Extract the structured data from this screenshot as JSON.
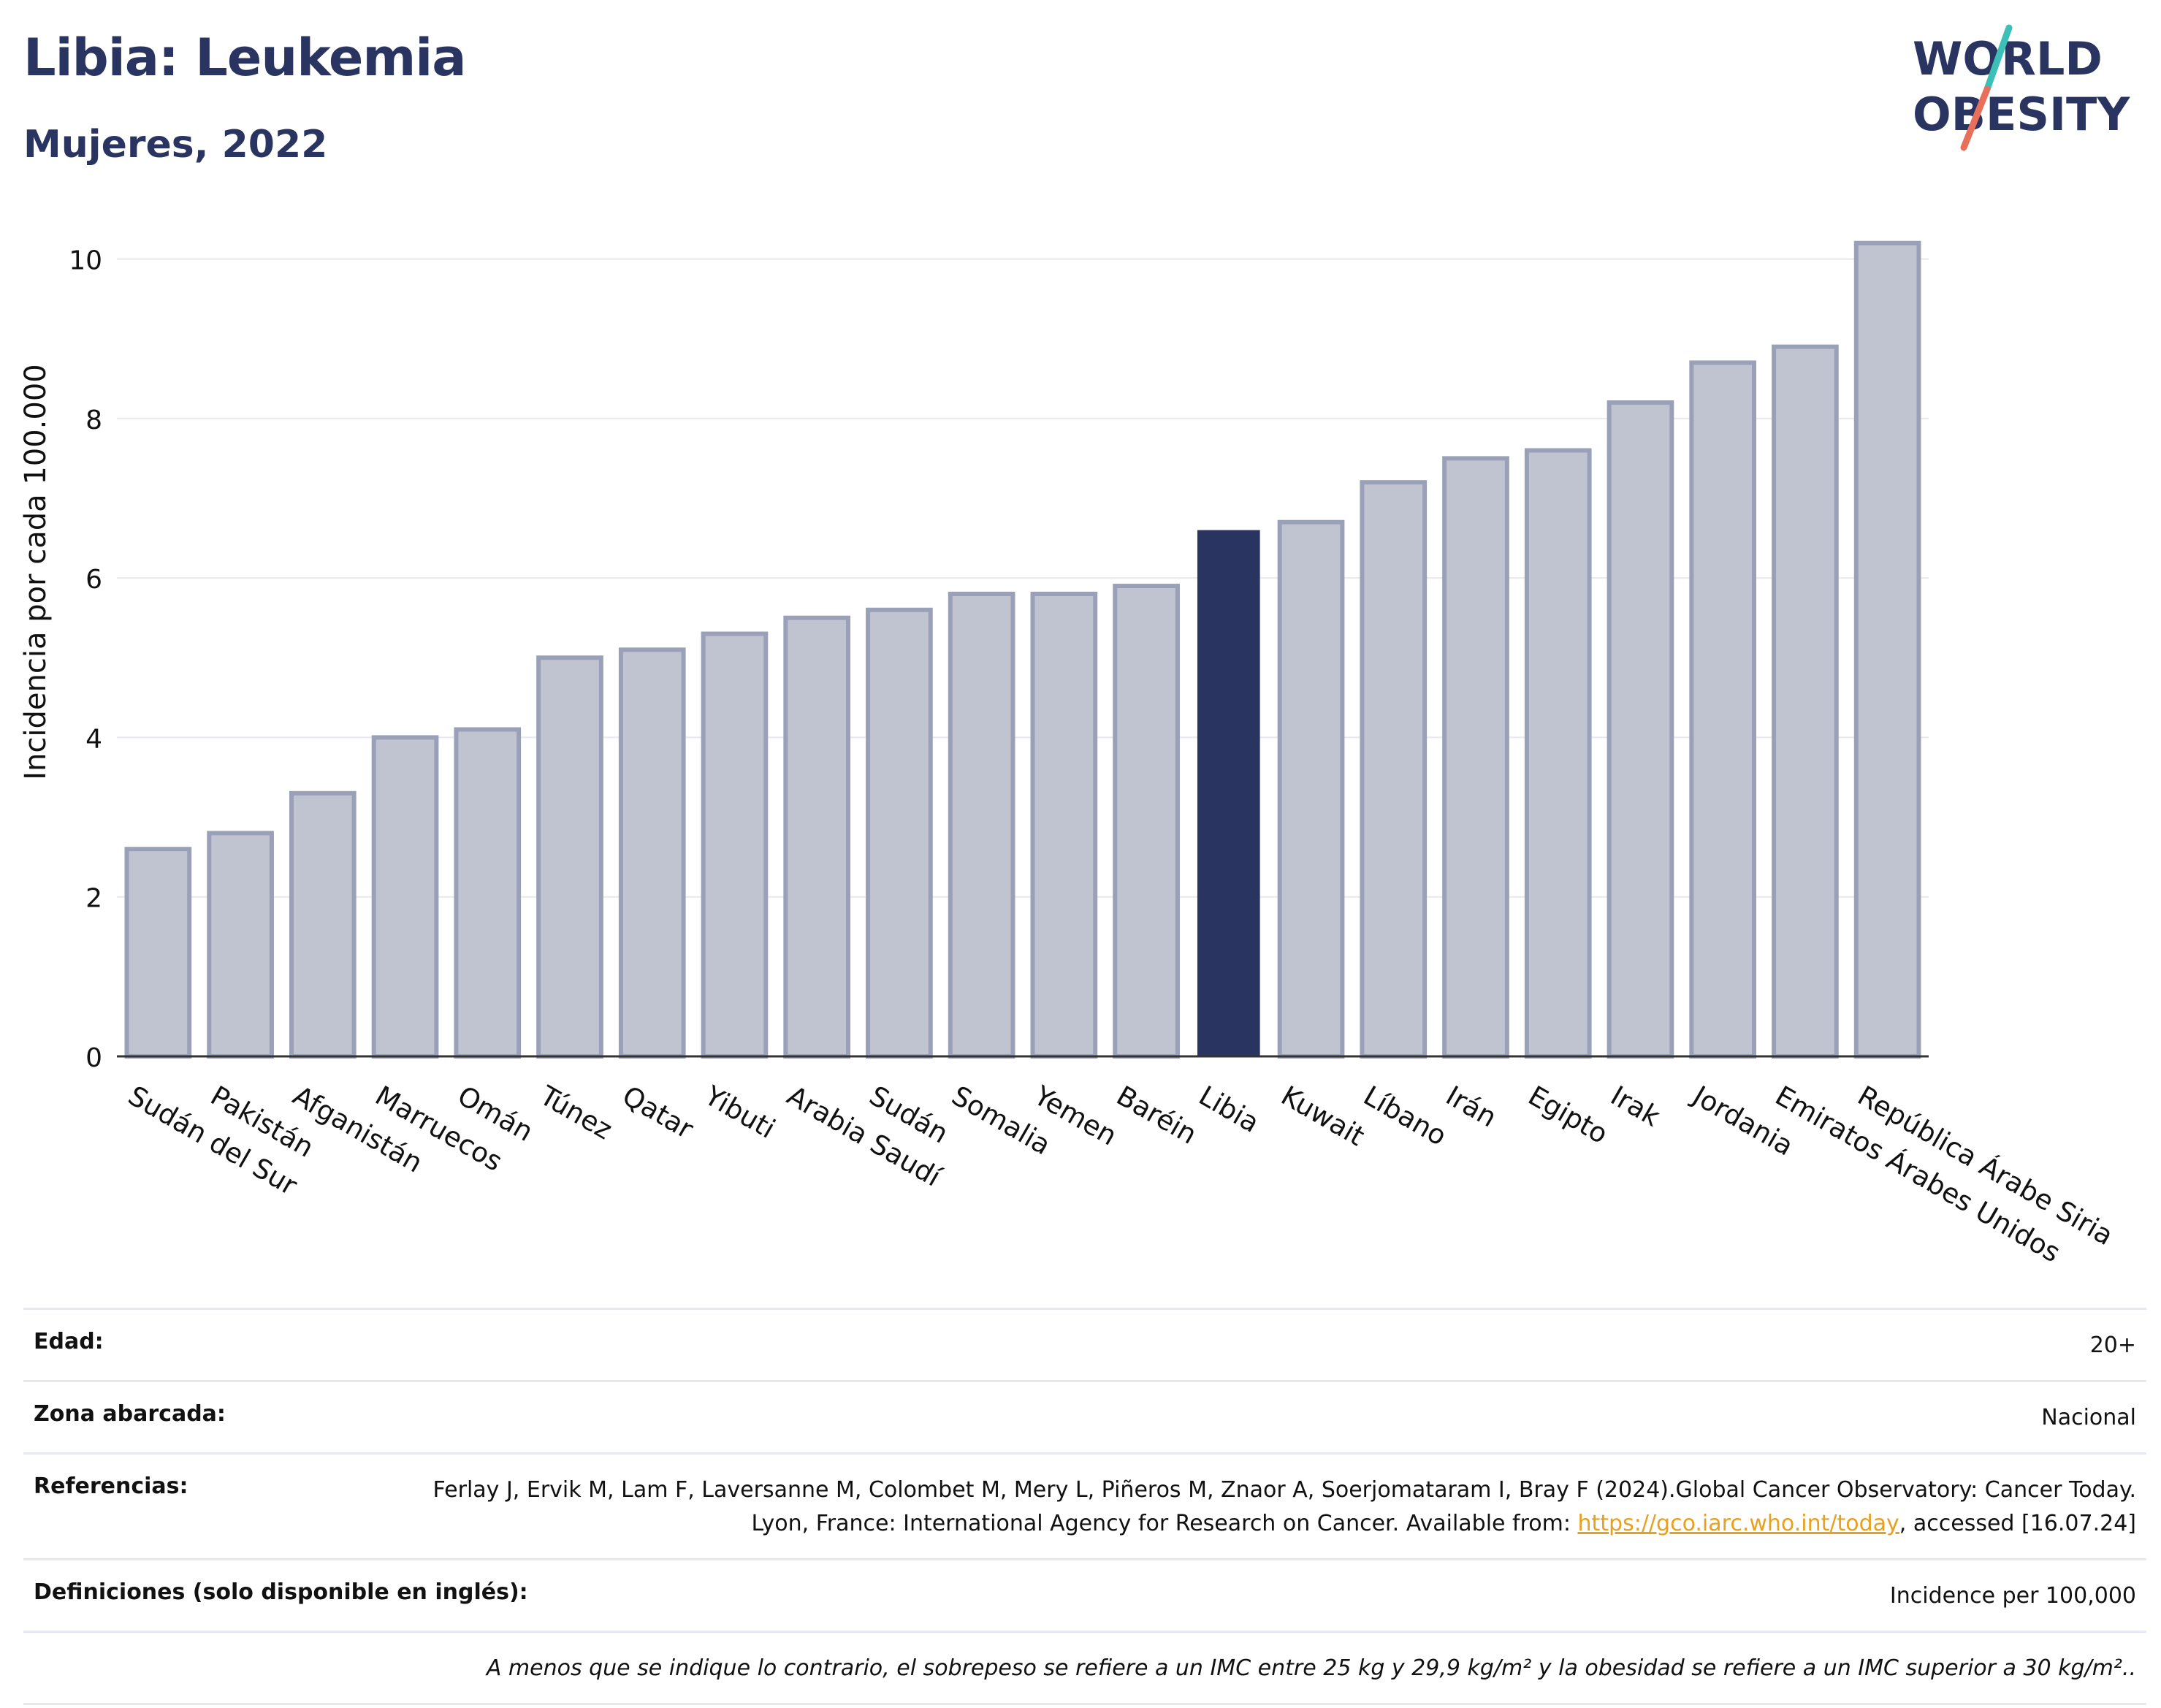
{
  "header": {
    "title": "Libia: Leukemia",
    "subtitle": "Mujeres, 2022"
  },
  "logo": {
    "line1": "WORLD",
    "line2": "OBESITY",
    "slash_color_top": "#3bbfb6",
    "slash_color_bottom": "#e8705a"
  },
  "colors": {
    "bar_default": "#c0c4d1",
    "bar_default_border": "#9aa0b8",
    "bar_highlight": "#2a3461",
    "axis_text": "#111111",
    "grid": "#e8e8ee"
  },
  "chart_data": {
    "type": "bar",
    "title": "Libia: Leukemia",
    "subtitle": "Mujeres, 2022",
    "xlabel": "",
    "ylabel": "Incidencia por cada 100.000",
    "ylim": [
      0,
      10.5
    ],
    "yticks": [
      0,
      2,
      4,
      6,
      8,
      10
    ],
    "grid": true,
    "highlight": "Libia",
    "categories": [
      "Sudán del Sur",
      "Pakistán",
      "Afganistán",
      "Marruecos",
      "Omán",
      "Túnez",
      "Qatar",
      "Yibuti",
      "Arabia Saudí",
      "Sudán",
      "Somalia",
      "Yemen",
      "Baréin",
      "Libia",
      "Kuwait",
      "Líbano",
      "Irán",
      "Egipto",
      "Irak",
      "Jordania",
      "Emiratos Árabes Unidos",
      "República Árabe Siria"
    ],
    "values": [
      2.6,
      2.8,
      3.3,
      4.0,
      4.1,
      5.0,
      5.1,
      5.3,
      5.5,
      5.6,
      5.8,
      5.8,
      5.9,
      6.6,
      6.7,
      7.2,
      7.5,
      7.6,
      8.2,
      8.7,
      8.9,
      10.2
    ]
  },
  "info": {
    "rows": [
      {
        "label": "Edad:",
        "value": "20+"
      },
      {
        "label": "Zona abarcada:",
        "value": "Nacional"
      },
      {
        "label": "Referencias:",
        "value_before": "Ferlay J, Ervik M, Lam F, Laversanne M, Colombet M, Mery L, Piñeros M, Znaor A, Soerjomataram I, Bray F (2024).Global Cancer Observatory: Cancer Today. Lyon, France: International Agency for Research on Cancer. Available from: ",
        "link": "https://gco.iarc.who.int/today",
        "value_after": ", accessed [16.07.24]"
      },
      {
        "label": "Definiciones (solo disponible en inglés):",
        "value": "Incidence per 100,000"
      }
    ],
    "note": "A menos que se indique lo contrario, el sobrepeso se refiere a un IMC entre 25 kg y 29,9 kg/m² y la obesidad se refiere a un IMC superior a 30 kg/m².."
  }
}
